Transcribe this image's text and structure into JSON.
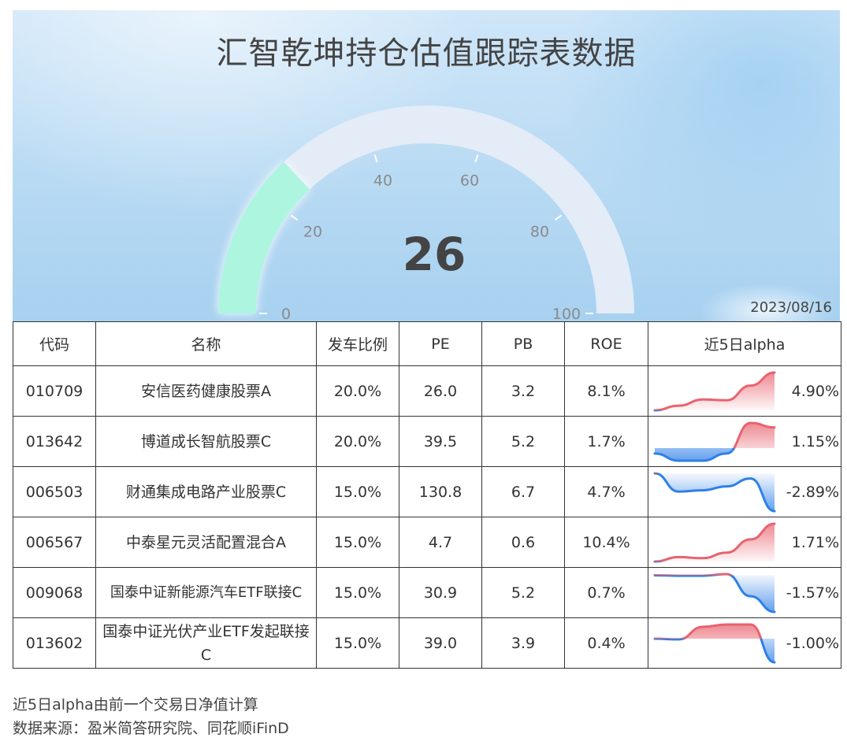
{
  "title": "汇智乾坤持仓估值跟踪表数据",
  "gauge": {
    "value": 26,
    "min": 0,
    "max": 100,
    "ticks": [
      "0",
      "20",
      "40",
      "60",
      "80",
      "100"
    ],
    "fill_color": "#aef5e0",
    "track_color": "#e4ecf8"
  },
  "date": "2023/08/16",
  "table": {
    "headers": [
      "代码",
      "名称",
      "发车比例",
      "PE",
      "PB",
      "ROE",
      "近5日alpha"
    ],
    "rows": [
      {
        "code": "010709",
        "name": "安信医药健康股票A",
        "ratio": "20.0%",
        "pe": "26.0",
        "pb": "3.2",
        "roe": "8.1%",
        "alpha": "4.90%",
        "spark": [
          0.0,
          0.6,
          1.4,
          1.3,
          3.2,
          4.9
        ]
      },
      {
        "code": "013642",
        "name": "博道成长智航股票C",
        "ratio": "20.0%",
        "pe": "39.5",
        "pb": "5.2",
        "roe": "1.7%",
        "alpha": "1.15%",
        "spark": [
          -0.3,
          -0.7,
          -0.7,
          -0.3,
          1.4,
          1.15
        ]
      },
      {
        "code": "006503",
        "name": "财通集成电路产业股票C",
        "ratio": "15.0%",
        "pe": "130.8",
        "pb": "6.7",
        "roe": "4.7%",
        "alpha": "-2.89%",
        "spark": [
          0.0,
          -1.4,
          -1.3,
          -1.0,
          -0.4,
          -2.89
        ]
      },
      {
        "code": "006567",
        "name": "中泰星元灵活配置混合A",
        "ratio": "15.0%",
        "pe": "4.7",
        "pb": "0.6",
        "roe": "10.4%",
        "alpha": "1.71%",
        "spark": [
          0.0,
          0.2,
          0.15,
          0.4,
          1.0,
          1.71
        ]
      },
      {
        "code": "009068",
        "name": "国泰中证新能源汽车ETF联接C",
        "ratio": "15.0%",
        "pe": "30.9",
        "pb": "5.2",
        "roe": "0.7%",
        "alpha": "-1.57%",
        "spark": [
          0.0,
          -0.02,
          -0.02,
          0.05,
          -0.9,
          -1.57
        ]
      },
      {
        "code": "013602",
        "name": "国泰中证光伏产业ETF发起联接C",
        "ratio": "15.0%",
        "pe": "39.0",
        "pb": "3.9",
        "roe": "0.4%",
        "alpha": "-1.00%",
        "spark": [
          0.0,
          -0.03,
          0.5,
          0.6,
          0.6,
          -1.0
        ]
      }
    ]
  },
  "colors": {
    "positive": "#e8636f",
    "negative": "#2f80e8"
  },
  "notes": {
    "line1": "近5日alpha由前一个交易日净值计算",
    "line2": "数据来源：盈米简答研究院、同花顺iFinD"
  }
}
